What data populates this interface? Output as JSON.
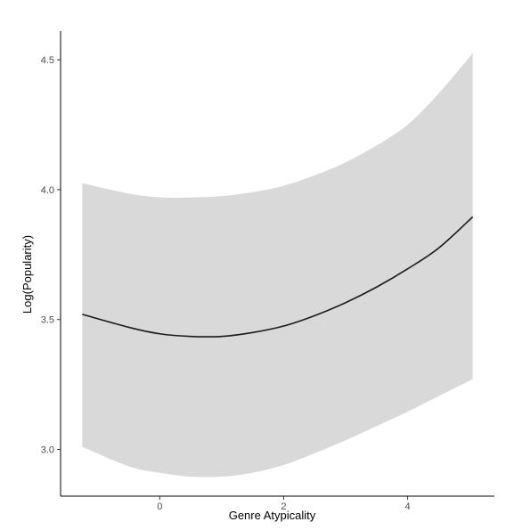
{
  "chart_data": {
    "type": "line",
    "xlabel": "Genre Atypicality",
    "ylabel": "Log(Popularity)",
    "xlim": [
      -1.6,
      5.4
    ],
    "ylim": [
      2.82,
      4.61
    ],
    "x_ticks": [
      0,
      2,
      4
    ],
    "x_tick_labels": [
      "0",
      "2",
      "4"
    ],
    "y_ticks": [
      3.0,
      3.5,
      4.0,
      4.5
    ],
    "y_tick_labels": [
      "3.0",
      "3.5",
      "4.0",
      "4.5"
    ],
    "grid": false,
    "legend": "none",
    "series": [
      {
        "x": [
          -1.25,
          -0.5,
          0.0,
          0.5,
          1.0,
          1.5,
          2.0,
          2.5,
          3.0,
          3.5,
          4.0,
          4.5,
          5.05
        ],
        "y": [
          3.52,
          3.47,
          3.445,
          3.435,
          3.435,
          3.45,
          3.475,
          3.515,
          3.565,
          3.625,
          3.695,
          3.775,
          3.895
        ],
        "lower": [
          3.01,
          2.935,
          2.91,
          2.895,
          2.895,
          2.91,
          2.94,
          2.985,
          3.035,
          3.09,
          3.145,
          3.205,
          3.27
        ],
        "upper": [
          4.025,
          3.985,
          3.97,
          3.97,
          3.975,
          3.99,
          4.015,
          4.055,
          4.105,
          4.17,
          4.25,
          4.37,
          4.525
        ]
      }
    ],
    "colors": {
      "line": "#1a1a1a",
      "band": "#d9d9d9",
      "axis": "#000000"
    }
  }
}
